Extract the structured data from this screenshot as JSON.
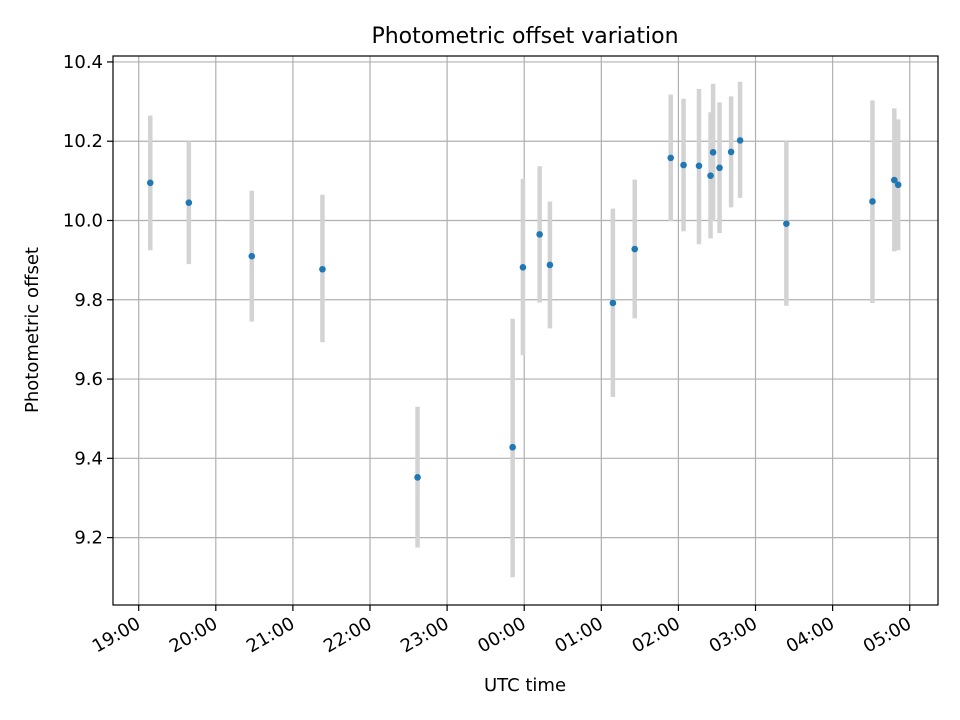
{
  "chart_data": {
    "type": "scatter",
    "title": "Photometric offset variation",
    "xlabel": "UTC time",
    "ylabel": "Photometric offset",
    "x_ticks": [
      "19:00",
      "20:00",
      "21:00",
      "22:00",
      "23:00",
      "00:00",
      "01:00",
      "02:00",
      "03:00",
      "04:00",
      "05:00"
    ],
    "y_ticks": [
      "9.2",
      "9.4",
      "9.6",
      "9.8",
      "10.0",
      "10.2",
      "10.4"
    ],
    "ylim": [
      9.03,
      10.415
    ],
    "xlim": [
      "18:40",
      "05:22"
    ],
    "grid": true,
    "point_color": "#1f77b4",
    "errorbar_color": "#d3d3d3",
    "points": [
      {
        "time": "19:09",
        "y": 10.095,
        "lo": 9.925,
        "hi": 10.265
      },
      {
        "time": "19:39",
        "y": 10.045,
        "lo": 9.89,
        "hi": 10.2
      },
      {
        "time": "20:28",
        "y": 9.91,
        "lo": 9.745,
        "hi": 10.075
      },
      {
        "time": "21:23",
        "y": 9.877,
        "lo": 9.693,
        "hi": 10.065
      },
      {
        "time": "22:37",
        "y": 9.352,
        "lo": 9.175,
        "hi": 9.53
      },
      {
        "time": "23:51",
        "y": 9.428,
        "lo": 9.1,
        "hi": 9.752
      },
      {
        "time": "23:59",
        "y": 9.882,
        "lo": 9.66,
        "hi": 10.105
      },
      {
        "time": "00:12",
        "y": 9.965,
        "lo": 9.793,
        "hi": 10.137
      },
      {
        "time": "00:20",
        "y": 9.888,
        "lo": 9.728,
        "hi": 10.048
      },
      {
        "time": "01:09",
        "y": 9.792,
        "lo": 9.555,
        "hi": 10.03
      },
      {
        "time": "01:26",
        "y": 9.928,
        "lo": 9.753,
        "hi": 10.103
      },
      {
        "time": "01:54",
        "y": 10.158,
        "lo": 9.998,
        "hi": 10.318
      },
      {
        "time": "02:04",
        "y": 10.14,
        "lo": 9.973,
        "hi": 10.307
      },
      {
        "time": "02:16",
        "y": 10.138,
        "lo": 9.94,
        "hi": 10.332
      },
      {
        "time": "02:25",
        "y": 10.113,
        "lo": 9.955,
        "hi": 10.273
      },
      {
        "time": "02:27",
        "y": 10.172,
        "lo": 9.998,
        "hi": 10.345
      },
      {
        "time": "02:32",
        "y": 10.133,
        "lo": 9.968,
        "hi": 10.298
      },
      {
        "time": "02:41",
        "y": 10.173,
        "lo": 10.033,
        "hi": 10.313
      },
      {
        "time": "02:48",
        "y": 10.202,
        "lo": 10.057,
        "hi": 10.35
      },
      {
        "time": "03:24",
        "y": 9.992,
        "lo": 9.785,
        "hi": 10.2
      },
      {
        "time": "04:31",
        "y": 10.048,
        "lo": 9.792,
        "hi": 10.303
      },
      {
        "time": "04:48",
        "y": 10.102,
        "lo": 9.922,
        "hi": 10.283
      },
      {
        "time": "04:51",
        "y": 10.09,
        "lo": 9.925,
        "hi": 10.255
      }
    ]
  }
}
